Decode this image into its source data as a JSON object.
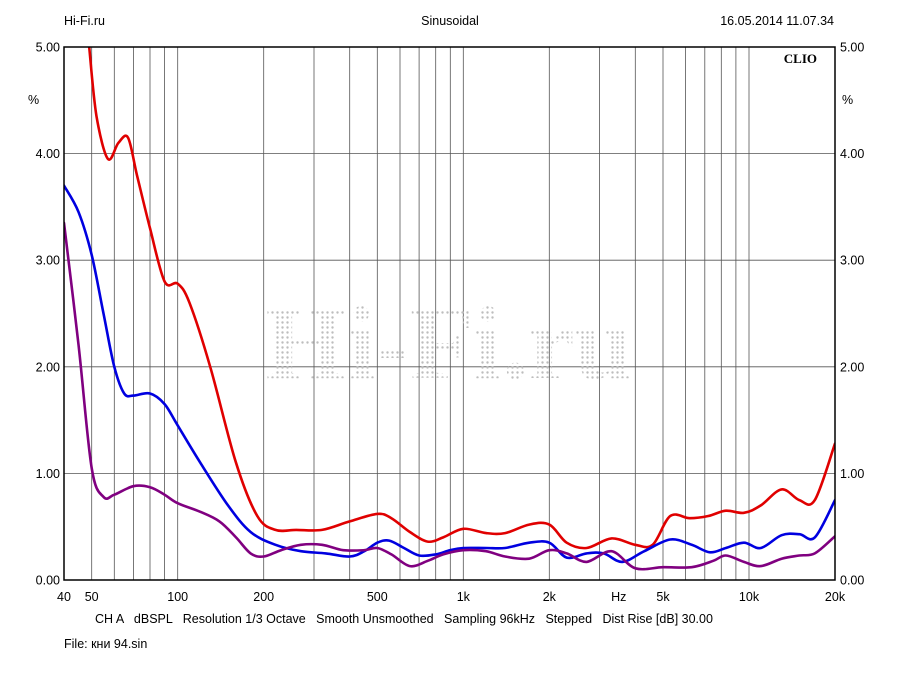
{
  "header": {
    "left": "Hi-Fi.ru",
    "center": "Sinusoidal",
    "right": "16.05.2014 11.07.34"
  },
  "brand": "CLIO",
  "watermark": "Hi-Fi.ru",
  "footer": {
    "info": "CH A   dBSPL   Resolution 1/3 Octave   Smooth Unsmoothed   Sampling 96kHz   Stepped   Dist Rise [dB] 30.00",
    "file": "File: кни 94.sin"
  },
  "chart_data": {
    "type": "line",
    "title": "Sinusoidal",
    "xscale": "log",
    "xlim": [
      40,
      20000
    ],
    "ylim": [
      0,
      5
    ],
    "grid": true,
    "xlabel": "Hz",
    "ylabel": "%",
    "x_ticks": [
      "40",
      "50",
      "100",
      "200",
      "500",
      "1k",
      "2k",
      "Hz",
      "5k",
      "10k",
      "20k"
    ],
    "y_ticks": [
      "0.00",
      "1.00",
      "2.00",
      "3.00",
      "4.00",
      "5.00"
    ],
    "series": [
      {
        "color": "#e00000",
        "x": [
          49,
          52,
          57,
          62,
          67,
          72,
          80,
          90,
          100,
          110,
          130,
          160,
          190,
          220,
          260,
          320,
          400,
          500,
          560,
          650,
          750,
          850,
          1000,
          1200,
          1400,
          1700,
          2000,
          2300,
          2700,
          3300,
          4000,
          4600,
          5300,
          6200,
          7200,
          8300,
          9600,
          11000,
          13000,
          15000,
          17000,
          20000
        ],
        "y": [
          5.0,
          4.35,
          3.95,
          4.1,
          4.15,
          3.8,
          3.3,
          2.8,
          2.78,
          2.6,
          2.0,
          1.1,
          0.6,
          0.47,
          0.47,
          0.47,
          0.55,
          0.62,
          0.58,
          0.45,
          0.36,
          0.4,
          0.48,
          0.44,
          0.44,
          0.52,
          0.52,
          0.35,
          0.3,
          0.39,
          0.33,
          0.33,
          0.6,
          0.58,
          0.6,
          0.65,
          0.63,
          0.7,
          0.85,
          0.75,
          0.75,
          1.28
        ]
      },
      {
        "color": "#0000e0",
        "x": [
          40,
          45,
          50,
          55,
          60,
          65,
          70,
          80,
          90,
          100,
          120,
          150,
          180,
          220,
          270,
          330,
          400,
          450,
          500,
          550,
          620,
          700,
          800,
          900,
          1000,
          1200,
          1400,
          1700,
          2000,
          2300,
          2700,
          3100,
          3600,
          4300,
          5300,
          6300,
          7300,
          8300,
          9600,
          11000,
          13000,
          15000,
          17000,
          20000
        ],
        "y": [
          3.7,
          3.45,
          3.05,
          2.5,
          2.0,
          1.75,
          1.73,
          1.75,
          1.65,
          1.45,
          1.1,
          0.7,
          0.45,
          0.33,
          0.27,
          0.25,
          0.22,
          0.27,
          0.35,
          0.37,
          0.3,
          0.23,
          0.24,
          0.28,
          0.3,
          0.3,
          0.3,
          0.35,
          0.35,
          0.21,
          0.25,
          0.25,
          0.17,
          0.27,
          0.38,
          0.33,
          0.26,
          0.3,
          0.35,
          0.3,
          0.42,
          0.43,
          0.4,
          0.75
        ]
      },
      {
        "color": "#800080",
        "x": [
          40,
          45,
          50,
          55,
          60,
          70,
          80,
          90,
          100,
          120,
          140,
          160,
          180,
          200,
          230,
          270,
          320,
          380,
          450,
          500,
          560,
          650,
          750,
          850,
          1000,
          1200,
          1400,
          1700,
          2000,
          2300,
          2700,
          3300,
          4000,
          5000,
          6300,
          7500,
          8300,
          9600,
          11000,
          13000,
          15000,
          17000,
          20000
        ],
        "y": [
          3.35,
          2.2,
          1.05,
          0.78,
          0.8,
          0.88,
          0.87,
          0.8,
          0.72,
          0.64,
          0.55,
          0.4,
          0.25,
          0.22,
          0.28,
          0.33,
          0.33,
          0.28,
          0.28,
          0.3,
          0.24,
          0.13,
          0.18,
          0.24,
          0.28,
          0.27,
          0.22,
          0.2,
          0.28,
          0.25,
          0.17,
          0.27,
          0.11,
          0.12,
          0.12,
          0.18,
          0.23,
          0.17,
          0.13,
          0.2,
          0.23,
          0.25,
          0.41
        ]
      }
    ]
  }
}
